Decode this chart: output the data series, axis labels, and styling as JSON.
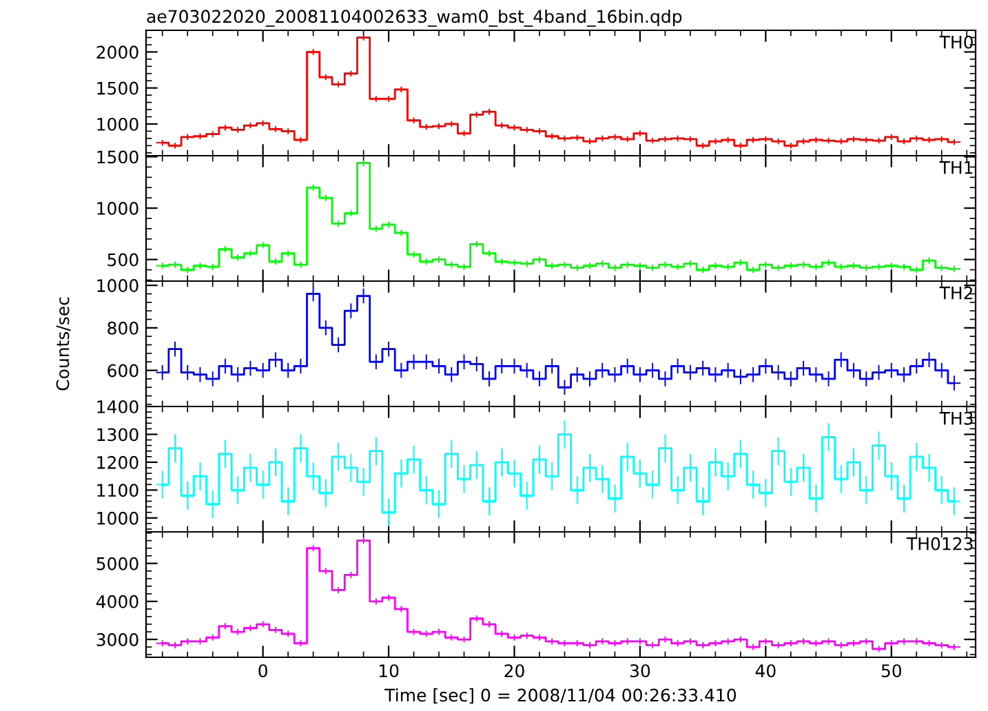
{
  "chart_data": [
    {
      "type": "step",
      "title": "ae703022020_20081104002633_wam0_bst_4band_16bin.qdp",
      "tick_labels": "y",
      "xlim": [
        -9.3,
        56.7
      ],
      "xticks": [
        {
          "value": 0,
          "label": null
        },
        {
          "value": 10,
          "label": null
        },
        {
          "value": 20,
          "label": null
        },
        {
          "value": 30,
          "label": null
        },
        {
          "value": 40,
          "label": null
        },
        {
          "value": 50,
          "label": null
        }
      ],
      "ylim": [
        560,
        2300
      ],
      "yticks": [
        1000,
        1500,
        2000
      ],
      "x": [
        -8,
        -7,
        -6,
        -5,
        -4,
        -3,
        -2,
        -1,
        0,
        1,
        2,
        3,
        4,
        5,
        6,
        7,
        8,
        9,
        10,
        11,
        12,
        13,
        14,
        15,
        16,
        17,
        18,
        19,
        20,
        21,
        22,
        23,
        24,
        25,
        26,
        27,
        28,
        29,
        30,
        31,
        32,
        33,
        34,
        35,
        36,
        37,
        38,
        39,
        40,
        41,
        42,
        43,
        44,
        45,
        46,
        47,
        48,
        49,
        50,
        51,
        52,
        53,
        54,
        55
      ],
      "series": [
        {
          "name": "TH0",
          "color": "#ff0000",
          "values": [
            740,
            700,
            820,
            830,
            860,
            950,
            920,
            980,
            1010,
            930,
            900,
            780,
            2000,
            1650,
            1550,
            1700,
            2200,
            1350,
            1350,
            1480,
            1050,
            960,
            970,
            1000,
            870,
            1130,
            1170,
            980,
            950,
            920,
            900,
            830,
            800,
            810,
            760,
            800,
            820,
            790,
            870,
            770,
            790,
            800,
            790,
            700,
            760,
            780,
            700,
            780,
            790,
            760,
            700,
            760,
            780,
            770,
            760,
            790,
            780,
            770,
            820,
            760,
            800,
            780,
            790,
            750
          ],
          "errors": [
            40,
            40,
            40,
            40,
            40,
            40,
            40,
            40,
            40,
            40,
            40,
            40,
            40,
            40,
            40,
            40,
            40,
            40,
            40,
            40,
            40,
            40,
            40,
            40,
            40,
            40,
            40,
            40,
            40,
            40,
            40,
            40,
            40,
            40,
            40,
            40,
            40,
            40,
            40,
            40,
            40,
            40,
            40,
            40,
            40,
            40,
            40,
            40,
            40,
            40,
            40,
            40,
            40,
            40,
            40,
            40,
            40,
            40,
            40,
            40,
            40,
            40,
            40,
            40
          ],
          "xerrors": [
            0.5,
            0.5,
            0.5,
            0.5,
            0.5,
            0.5,
            0.5,
            0.5,
            0.5,
            0.5,
            0.5,
            0.5,
            0.5,
            0.5,
            0.5,
            0.5,
            0.5,
            0.5,
            0.5,
            0.5,
            0.5,
            0.5,
            0.5,
            0.5,
            0.5,
            0.5,
            0.5,
            0.5,
            0.5,
            0.5,
            0.5,
            0.5,
            0.5,
            0.5,
            0.5,
            0.5,
            0.5,
            0.5,
            0.5,
            0.5,
            0.5,
            0.5,
            0.5,
            0.5,
            0.5,
            0.5,
            0.5,
            0.5,
            0.5,
            0.5,
            0.5,
            0.5,
            0.5,
            0.5,
            0.5,
            0.5,
            0.5,
            0.5,
            0.5,
            0.5,
            0.5,
            0.5,
            0.5,
            0.5
          ]
        }
      ]
    },
    {
      "type": "step",
      "tick_labels": "y",
      "xlim": [
        -9.3,
        56.7
      ],
      "xticks": [
        {
          "value": 0,
          "label": null
        },
        {
          "value": 10,
          "label": null
        },
        {
          "value": 20,
          "label": null
        },
        {
          "value": 30,
          "label": null
        },
        {
          "value": 40,
          "label": null
        },
        {
          "value": 50,
          "label": null
        }
      ],
      "ylim": [
        290,
        1510
      ],
      "yticks": [
        500,
        1000,
        1500
      ],
      "x": [
        -8,
        -7,
        -6,
        -5,
        -4,
        -3,
        -2,
        -1,
        0,
        1,
        2,
        3,
        4,
        5,
        6,
        7,
        8,
        9,
        10,
        11,
        12,
        13,
        14,
        15,
        16,
        17,
        18,
        19,
        20,
        21,
        22,
        23,
        24,
        25,
        26,
        27,
        28,
        29,
        30,
        31,
        32,
        33,
        34,
        35,
        36,
        37,
        38,
        39,
        40,
        41,
        42,
        43,
        44,
        45,
        46,
        47,
        48,
        49,
        50,
        51,
        52,
        53,
        54,
        55
      ],
      "series": [
        {
          "name": "TH1",
          "color": "#00ff00",
          "values": [
            440,
            450,
            400,
            440,
            430,
            600,
            520,
            560,
            640,
            480,
            560,
            450,
            1200,
            1100,
            850,
            950,
            1440,
            800,
            840,
            760,
            550,
            480,
            500,
            450,
            430,
            650,
            560,
            480,
            470,
            460,
            500,
            440,
            450,
            420,
            440,
            460,
            420,
            450,
            440,
            420,
            450,
            430,
            460,
            400,
            440,
            430,
            470,
            400,
            450,
            420,
            440,
            450,
            430,
            470,
            430,
            440,
            420,
            430,
            440,
            430,
            400,
            490,
            420,
            410
          ],
          "errors": [
            30,
            30,
            30,
            30,
            30,
            30,
            30,
            30,
            30,
            30,
            30,
            30,
            30,
            30,
            30,
            30,
            30,
            30,
            30,
            30,
            30,
            30,
            30,
            30,
            30,
            30,
            30,
            30,
            30,
            30,
            30,
            30,
            30,
            30,
            30,
            30,
            30,
            30,
            30,
            30,
            30,
            30,
            30,
            30,
            30,
            30,
            30,
            30,
            30,
            30,
            30,
            30,
            30,
            30,
            30,
            30,
            30,
            30,
            30,
            30,
            30,
            30,
            30,
            30
          ],
          "xerrors": [
            0.5,
            0.5,
            0.5,
            0.5,
            0.5,
            0.5,
            0.5,
            0.5,
            0.5,
            0.5,
            0.5,
            0.5,
            0.5,
            0.5,
            0.5,
            0.5,
            0.5,
            0.5,
            0.5,
            0.5,
            0.5,
            0.5,
            0.5,
            0.5,
            0.5,
            0.5,
            0.5,
            0.5,
            0.5,
            0.5,
            0.5,
            0.5,
            0.5,
            0.5,
            0.5,
            0.5,
            0.5,
            0.5,
            0.5,
            0.5,
            0.5,
            0.5,
            0.5,
            0.5,
            0.5,
            0.5,
            0.5,
            0.5,
            0.5,
            0.5,
            0.5,
            0.5,
            0.5,
            0.5,
            0.5,
            0.5,
            0.5,
            0.5,
            0.5,
            0.5,
            0.5,
            0.5,
            0.5,
            0.5
          ]
        }
      ]
    },
    {
      "type": "step",
      "ylabel": "Counts/sec",
      "tick_labels": "y",
      "xlim": [
        -9.3,
        56.7
      ],
      "xticks": [
        {
          "value": 0,
          "label": null
        },
        {
          "value": 10,
          "label": null
        },
        {
          "value": 20,
          "label": null
        },
        {
          "value": 30,
          "label": null
        },
        {
          "value": 40,
          "label": null
        },
        {
          "value": 50,
          "label": null
        }
      ],
      "ylim": [
        430,
        1020
      ],
      "yticks": [
        600,
        800,
        1000
      ],
      "x": [
        -8,
        -7,
        -6,
        -5,
        -4,
        -3,
        -2,
        -1,
        0,
        1,
        2,
        3,
        4,
        5,
        6,
        7,
        8,
        9,
        10,
        11,
        12,
        13,
        14,
        15,
        16,
        17,
        18,
        19,
        20,
        21,
        22,
        23,
        24,
        25,
        26,
        27,
        28,
        29,
        30,
        31,
        32,
        33,
        34,
        35,
        36,
        37,
        38,
        39,
        40,
        41,
        42,
        43,
        44,
        45,
        46,
        47,
        48,
        49,
        50,
        51,
        52,
        53,
        54,
        55
      ],
      "series": [
        {
          "name": "TH2",
          "color": "#0000ff",
          "values": [
            590,
            700,
            590,
            580,
            560,
            620,
            580,
            610,
            600,
            650,
            600,
            620,
            960,
            800,
            720,
            880,
            950,
            640,
            700,
            600,
            640,
            640,
            620,
            580,
            640,
            630,
            560,
            620,
            620,
            600,
            560,
            620,
            520,
            580,
            560,
            600,
            580,
            620,
            580,
            600,
            560,
            620,
            590,
            610,
            580,
            600,
            570,
            580,
            620,
            590,
            560,
            610,
            580,
            560,
            650,
            600,
            560,
            590,
            600,
            580,
            620,
            650,
            600,
            540
          ],
          "errors": [
            35,
            35,
            35,
            35,
            35,
            35,
            35,
            35,
            35,
            35,
            35,
            35,
            35,
            35,
            35,
            35,
            35,
            35,
            35,
            35,
            35,
            35,
            35,
            35,
            35,
            35,
            35,
            35,
            35,
            35,
            35,
            35,
            35,
            35,
            35,
            35,
            35,
            35,
            35,
            35,
            35,
            35,
            35,
            35,
            35,
            35,
            35,
            35,
            35,
            35,
            35,
            35,
            35,
            35,
            35,
            35,
            35,
            35,
            35,
            35,
            35,
            35,
            35,
            35
          ],
          "xerrors": [
            0.5,
            0.5,
            0.5,
            0.5,
            0.5,
            0.5,
            0.5,
            0.5,
            0.5,
            0.5,
            0.5,
            0.5,
            0.5,
            0.5,
            0.5,
            0.5,
            0.5,
            0.5,
            0.5,
            0.5,
            0.5,
            0.5,
            0.5,
            0.5,
            0.5,
            0.5,
            0.5,
            0.5,
            0.5,
            0.5,
            0.5,
            0.5,
            0.5,
            0.5,
            0.5,
            0.5,
            0.5,
            0.5,
            0.5,
            0.5,
            0.5,
            0.5,
            0.5,
            0.5,
            0.5,
            0.5,
            0.5,
            0.5,
            0.5,
            0.5,
            0.5,
            0.5,
            0.5,
            0.5,
            0.5,
            0.5,
            0.5,
            0.5,
            0.5,
            0.5,
            0.5,
            0.5,
            0.5,
            0.5
          ]
        }
      ]
    },
    {
      "type": "step",
      "tick_labels": "y",
      "xlim": [
        -9.3,
        56.7
      ],
      "xticks": [
        {
          "value": 0,
          "label": null
        },
        {
          "value": 10,
          "label": null
        },
        {
          "value": 20,
          "label": null
        },
        {
          "value": 30,
          "label": null
        },
        {
          "value": 40,
          "label": null
        },
        {
          "value": 50,
          "label": null
        }
      ],
      "ylim": [
        950,
        1400
      ],
      "yticks": [
        1000,
        1100,
        1200,
        1300,
        1400
      ],
      "x": [
        -8,
        -7,
        -6,
        -5,
        -4,
        -3,
        -2,
        -1,
        0,
        1,
        2,
        3,
        4,
        5,
        6,
        7,
        8,
        9,
        10,
        11,
        12,
        13,
        14,
        15,
        16,
        17,
        18,
        19,
        20,
        21,
        22,
        23,
        24,
        25,
        26,
        27,
        28,
        29,
        30,
        31,
        32,
        33,
        34,
        35,
        36,
        37,
        38,
        39,
        40,
        41,
        42,
        43,
        44,
        45,
        46,
        47,
        48,
        49,
        50,
        51,
        52,
        53,
        54,
        55
      ],
      "series": [
        {
          "name": "TH3",
          "color": "#00ffff",
          "values": [
            1120,
            1250,
            1080,
            1150,
            1050,
            1230,
            1100,
            1180,
            1120,
            1200,
            1060,
            1250,
            1150,
            1090,
            1220,
            1180,
            1130,
            1240,
            1020,
            1160,
            1210,
            1100,
            1050,
            1230,
            1140,
            1190,
            1060,
            1200,
            1160,
            1080,
            1210,
            1150,
            1300,
            1100,
            1180,
            1140,
            1070,
            1220,
            1160,
            1120,
            1250,
            1100,
            1180,
            1060,
            1200,
            1150,
            1230,
            1120,
            1090,
            1240,
            1130,
            1180,
            1070,
            1290,
            1140,
            1200,
            1100,
            1260,
            1150,
            1070,
            1220,
            1180,
            1100,
            1060
          ],
          "errors": [
            50,
            50,
            50,
            50,
            50,
            50,
            50,
            50,
            50,
            50,
            50,
            50,
            50,
            50,
            50,
            50,
            50,
            50,
            50,
            50,
            50,
            50,
            50,
            50,
            50,
            50,
            50,
            50,
            50,
            50,
            50,
            50,
            50,
            50,
            50,
            50,
            50,
            50,
            50,
            50,
            50,
            50,
            50,
            50,
            50,
            50,
            50,
            50,
            50,
            50,
            50,
            50,
            50,
            50,
            50,
            50,
            50,
            50,
            50,
            50,
            50,
            50,
            50,
            50
          ],
          "xerrors": [
            0.5,
            0.5,
            0.5,
            0.5,
            0.5,
            0.5,
            0.5,
            0.5,
            0.5,
            0.5,
            0.5,
            0.5,
            0.5,
            0.5,
            0.5,
            0.5,
            0.5,
            0.5,
            0.5,
            0.5,
            0.5,
            0.5,
            0.5,
            0.5,
            0.5,
            0.5,
            0.5,
            0.5,
            0.5,
            0.5,
            0.5,
            0.5,
            0.5,
            0.5,
            0.5,
            0.5,
            0.5,
            0.5,
            0.5,
            0.5,
            0.5,
            0.5,
            0.5,
            0.5,
            0.5,
            0.5,
            0.5,
            0.5,
            0.5,
            0.5,
            0.5,
            0.5,
            0.5,
            0.5,
            0.5,
            0.5,
            0.5,
            0.5,
            0.5,
            0.5,
            0.5,
            0.5,
            0.5,
            0.5
          ]
        }
      ]
    },
    {
      "type": "step",
      "xlabel": "Time [sec] 0 = 2008/11/04 00:26:33.410",
      "xlim": [
        -9.3,
        56.7
      ],
      "xticks": [
        0,
        10,
        20,
        30,
        40,
        50
      ],
      "ylim": [
        2530,
        5830
      ],
      "yticks": [
        3000,
        4000,
        5000
      ],
      "x": [
        -8,
        -7,
        -6,
        -5,
        -4,
        -3,
        -2,
        -1,
        0,
        1,
        2,
        3,
        4,
        5,
        6,
        7,
        8,
        9,
        10,
        11,
        12,
        13,
        14,
        15,
        16,
        17,
        18,
        19,
        20,
        21,
        22,
        23,
        24,
        25,
        26,
        27,
        28,
        29,
        30,
        31,
        32,
        33,
        34,
        35,
        36,
        37,
        38,
        39,
        40,
        41,
        42,
        43,
        44,
        45,
        46,
        47,
        48,
        49,
        50,
        51,
        52,
        53,
        54,
        55
      ],
      "series": [
        {
          "name": "TH0123",
          "color": "#ff00ff",
          "values": [
            2900,
            2850,
            2950,
            2950,
            3050,
            3350,
            3200,
            3300,
            3400,
            3250,
            3150,
            2900,
            5400,
            4800,
            4300,
            4700,
            5600,
            4000,
            4100,
            3800,
            3200,
            3150,
            3200,
            3050,
            3000,
            3550,
            3400,
            3150,
            3050,
            3100,
            3050,
            2950,
            2900,
            2900,
            2850,
            2950,
            2900,
            2950,
            2950,
            2850,
            3000,
            2900,
            2950,
            2850,
            2900,
            2950,
            3000,
            2800,
            2950,
            2850,
            2900,
            2950,
            2900,
            2950,
            2850,
            2900,
            2950,
            2750,
            2900,
            2950,
            2950,
            2900,
            2850,
            2800
          ],
          "errors": [
            80,
            80,
            80,
            80,
            80,
            80,
            80,
            80,
            80,
            80,
            80,
            80,
            80,
            80,
            80,
            80,
            80,
            80,
            80,
            80,
            80,
            80,
            80,
            80,
            80,
            80,
            80,
            80,
            80,
            80,
            80,
            80,
            80,
            80,
            80,
            80,
            80,
            80,
            80,
            80,
            80,
            80,
            80,
            80,
            80,
            80,
            80,
            80,
            80,
            80,
            80,
            80,
            80,
            80,
            80,
            80,
            80,
            80,
            80,
            80,
            80,
            80,
            80,
            80
          ],
          "xerrors": [
            0.5,
            0.5,
            0.5,
            0.5,
            0.5,
            0.5,
            0.5,
            0.5,
            0.5,
            0.5,
            0.5,
            0.5,
            0.5,
            0.5,
            0.5,
            0.5,
            0.5,
            0.5,
            0.5,
            0.5,
            0.5,
            0.5,
            0.5,
            0.5,
            0.5,
            0.5,
            0.5,
            0.5,
            0.5,
            0.5,
            0.5,
            0.5,
            0.5,
            0.5,
            0.5,
            0.5,
            0.5,
            0.5,
            0.5,
            0.5,
            0.5,
            0.5,
            0.5,
            0.5,
            0.5,
            0.5,
            0.5,
            0.5,
            0.5,
            0.5,
            0.5,
            0.5,
            0.5,
            0.5,
            0.5,
            0.5,
            0.5,
            0.5,
            0.5,
            0.5,
            0.5,
            0.5,
            0.5,
            0.5
          ]
        }
      ]
    }
  ]
}
